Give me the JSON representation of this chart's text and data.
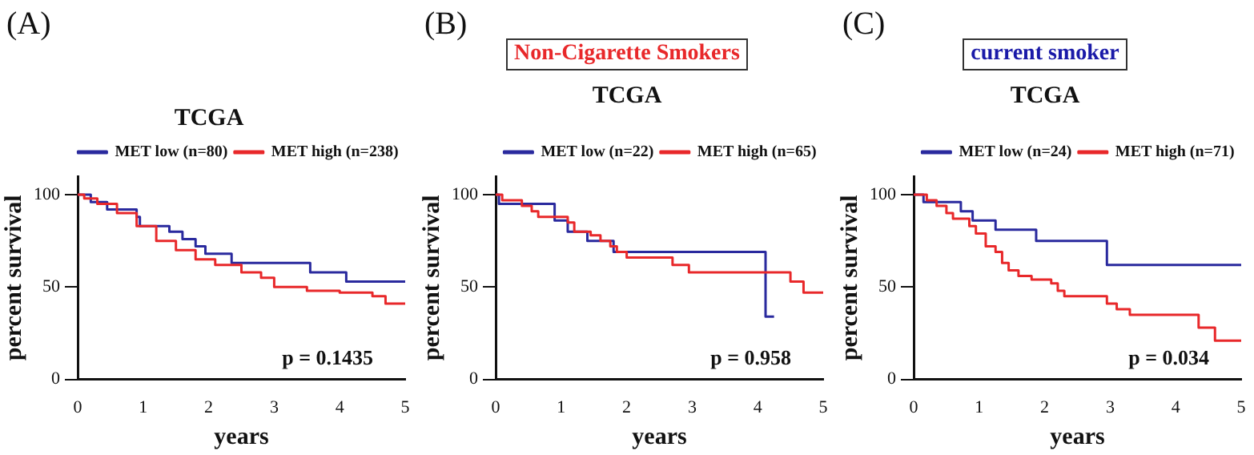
{
  "chart_data": [
    {
      "type": "step",
      "title": "TCGA",
      "xlabel": "years",
      "ylabel": "percent survival",
      "xlim": [
        0,
        5
      ],
      "xticks": [
        0,
        1,
        2,
        3,
        4,
        5
      ],
      "ylim": [
        0,
        110
      ],
      "yticks": [
        0,
        50,
        100
      ],
      "grid": false,
      "legend": "top right",
      "annotations": [
        "(A)",
        "p = 0.1435"
      ],
      "series": [
        {
          "name": "MET low (n=80)",
          "color": "#2a2a9e",
          "x": [
            0,
            0.2,
            0.45,
            0.9,
            0.95,
            1.4,
            1.6,
            1.8,
            1.95,
            2.35,
            3.55,
            4.1,
            5
          ],
          "values": [
            100,
            96,
            92,
            88,
            83,
            80,
            76,
            72,
            68,
            63,
            58,
            53,
            53
          ]
        },
        {
          "name": "MET high (n=238)",
          "color": "#e8282a",
          "x": [
            0,
            0.1,
            0.3,
            0.6,
            0.9,
            1.2,
            1.5,
            1.8,
            2.1,
            2.5,
            2.8,
            3.0,
            3.5,
            4.0,
            4.5,
            4.7,
            5
          ],
          "values": [
            100,
            98,
            95,
            90,
            83,
            75,
            70,
            65,
            62,
            58,
            55,
            50,
            48,
            47,
            45,
            41,
            41
          ]
        }
      ]
    },
    {
      "type": "step",
      "title": "TCGA",
      "xlabel": "years",
      "ylabel": "percent survival",
      "xlim": [
        0,
        5
      ],
      "xticks": [
        0,
        1,
        2,
        3,
        4,
        5
      ],
      "ylim": [
        0,
        110
      ],
      "yticks": [
        0,
        50,
        100
      ],
      "grid": false,
      "legend": "top right",
      "annotations": [
        "(B)",
        "Non-Cigarette Smokers",
        "p = 0.958"
      ],
      "series": [
        {
          "name": "MET low (n=22)",
          "color": "#2a2a9e",
          "x": [
            0,
            0.05,
            0.9,
            1.1,
            1.4,
            1.8,
            4.12,
            4.25
          ],
          "values": [
            100,
            95,
            86,
            80,
            75,
            69,
            34,
            34
          ]
        },
        {
          "name": "MET high (n=65)",
          "color": "#e8282a",
          "x": [
            0,
            0.1,
            0.4,
            0.55,
            0.65,
            1.1,
            1.2,
            1.45,
            1.6,
            1.75,
            1.85,
            2.0,
            2.7,
            2.95,
            4.5,
            4.7,
            5
          ],
          "values": [
            100,
            97,
            94,
            91,
            88,
            85,
            80,
            78,
            75,
            72,
            69,
            66,
            62,
            58,
            53,
            47,
            47
          ]
        }
      ]
    },
    {
      "type": "step",
      "title": "TCGA",
      "xlabel": "years",
      "ylabel": "percent survival",
      "xlim": [
        0,
        5
      ],
      "xticks": [
        0,
        1,
        2,
        3,
        4,
        5
      ],
      "ylim": [
        0,
        110
      ],
      "yticks": [
        0,
        50,
        100
      ],
      "grid": false,
      "legend": "top right",
      "annotations": [
        "(C)",
        "current smoker",
        "p = 0.034"
      ],
      "series": [
        {
          "name": "MET low (n=24)",
          "color": "#2a2a9e",
          "x": [
            0,
            0.15,
            0.72,
            0.9,
            1.25,
            1.87,
            2.95,
            5
          ],
          "values": [
            100,
            96,
            91,
            86,
            81,
            75,
            62,
            62
          ]
        },
        {
          "name": "MET high (n=71)",
          "color": "#e8282a",
          "x": [
            0,
            0.2,
            0.35,
            0.5,
            0.6,
            0.85,
            0.95,
            1.1,
            1.25,
            1.35,
            1.45,
            1.6,
            1.8,
            2.1,
            2.2,
            2.3,
            2.95,
            3.1,
            3.3,
            4.35,
            4.6,
            5
          ],
          "values": [
            100,
            97,
            94,
            90,
            87,
            83,
            79,
            72,
            69,
            63,
            59,
            56,
            54,
            52,
            48,
            45,
            41,
            38,
            35,
            28,
            21,
            21
          ]
        }
      ]
    }
  ]
}
